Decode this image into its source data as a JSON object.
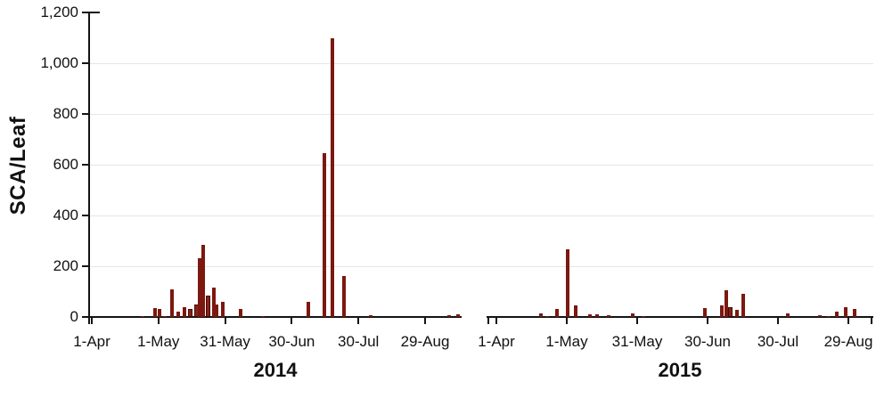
{
  "figure": {
    "background": "#ffffff",
    "axis_color": "#141414",
    "grid_color": "#e2e7e6",
    "bar_fill": "#7c180f",
    "bar_edge": "#430b05",
    "text_color": "#111111"
  },
  "chart_data": {
    "type": "bar",
    "title": "",
    "ylabel": "SCA/Leaf",
    "xlabel": "",
    "ylim": [
      0,
      1200
    ],
    "grid": "horizontal gridlines at 200,400,600,800,1000",
    "legend": "none",
    "x_unit": "day offset from 1-Apr (30-day tick spacing)",
    "y_ticks": [
      {
        "value": 0,
        "label": "0"
      },
      {
        "value": 200,
        "label": "200"
      },
      {
        "value": 400,
        "label": "400"
      },
      {
        "value": 600,
        "label": "600"
      },
      {
        "value": 800,
        "label": "800"
      },
      {
        "value": 1000,
        "label": "1,000"
      },
      {
        "value": 1200,
        "label": "1,200"
      }
    ],
    "panels": [
      {
        "title": "2014",
        "x_ticks": [
          {
            "day": 0,
            "label": "1-Apr"
          },
          {
            "day": 30,
            "label": "1-May"
          },
          {
            "day": 60,
            "label": "31-May"
          },
          {
            "day": 90,
            "label": "30-Jun"
          },
          {
            "day": 120,
            "label": "30-Jul"
          },
          {
            "day": 150,
            "label": "29-Aug"
          }
        ],
        "bars": [
          {
            "day": 23,
            "value": 3
          },
          {
            "day": 28.5,
            "value": 35
          },
          {
            "day": 30.3,
            "value": 32
          },
          {
            "day": 33,
            "value": 5
          },
          {
            "day": 36,
            "value": 110
          },
          {
            "day": 38.8,
            "value": 20
          },
          {
            "day": 41.6,
            "value": 40
          },
          {
            "day": 44.4,
            "value": 30,
            "w": 5
          },
          {
            "day": 47,
            "value": 50,
            "w": 5
          },
          {
            "day": 48.7,
            "value": 230
          },
          {
            "day": 50.3,
            "value": 285
          },
          {
            "day": 52.3,
            "value": 85,
            "w": 5
          },
          {
            "day": 54.9,
            "value": 115
          },
          {
            "day": 56.3,
            "value": 50
          },
          {
            "day": 58.9,
            "value": 60
          },
          {
            "day": 67,
            "value": 30
          },
          {
            "day": 77,
            "value": 3
          },
          {
            "day": 97.6,
            "value": 58
          },
          {
            "day": 104.8,
            "value": 645
          },
          {
            "day": 108.4,
            "value": 1100
          },
          {
            "day": 113.5,
            "value": 160
          },
          {
            "day": 125.5,
            "value": 6
          },
          {
            "day": 161,
            "value": 8
          },
          {
            "day": 164.7,
            "value": 12
          }
        ]
      },
      {
        "title": "2015",
        "x_ticks": [
          {
            "day": 0,
            "label": "1-Apr"
          },
          {
            "day": 30,
            "label": "1-May"
          },
          {
            "day": 60,
            "label": "31-May"
          },
          {
            "day": 90,
            "label": "30-Jun"
          },
          {
            "day": 120,
            "label": "30-Jul"
          },
          {
            "day": 150,
            "label": "29-Aug"
          }
        ],
        "bars": [
          {
            "day": 18.8,
            "value": 15
          },
          {
            "day": 21.5,
            "value": 5
          },
          {
            "day": 25.7,
            "value": 30
          },
          {
            "day": 30.2,
            "value": 265
          },
          {
            "day": 33.8,
            "value": 45
          },
          {
            "day": 40,
            "value": 12
          },
          {
            "day": 42.8,
            "value": 12
          },
          {
            "day": 47.7,
            "value": 8
          },
          {
            "day": 58,
            "value": 15
          },
          {
            "day": 62.7,
            "value": 4
          },
          {
            "day": 88.8,
            "value": 35
          },
          {
            "day": 96.2,
            "value": 45
          },
          {
            "day": 97.9,
            "value": 105
          },
          {
            "day": 99.7,
            "value": 40,
            "w": 5
          },
          {
            "day": 102.5,
            "value": 28
          },
          {
            "day": 105.1,
            "value": 92
          },
          {
            "day": 124.1,
            "value": 15
          },
          {
            "day": 137.8,
            "value": 8
          },
          {
            "day": 141.6,
            "value": 5
          },
          {
            "day": 144.9,
            "value": 20
          },
          {
            "day": 149,
            "value": 40
          },
          {
            "day": 152.7,
            "value": 30
          }
        ]
      }
    ]
  }
}
